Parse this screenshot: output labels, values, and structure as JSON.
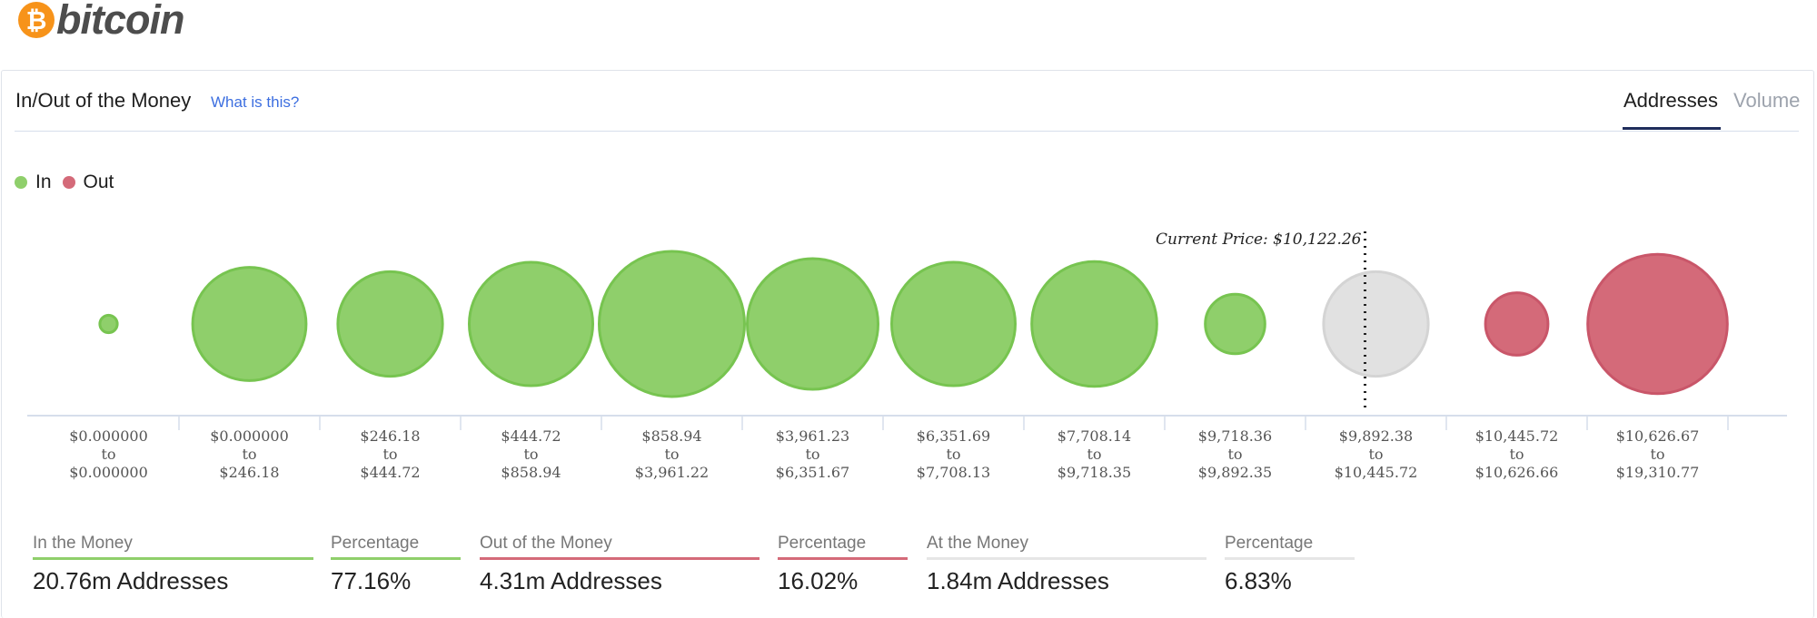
{
  "brand": {
    "symbol": "₿",
    "name": "bitcoin"
  },
  "header": {
    "title": "In/Out of the Money",
    "help_link": "What is this?",
    "tabs": [
      {
        "label": "Addresses",
        "active": true
      },
      {
        "label": "Volume",
        "active": false
      }
    ]
  },
  "colors": {
    "in": "#8fcf6b",
    "in_stroke": "#77c450",
    "out": "#d46a79",
    "out_stroke": "#c95669",
    "at": "#e1e1e1",
    "at_stroke": "#d4d4d4",
    "axis": "#d6deeb",
    "tick_text": "#555555"
  },
  "chart_data": {
    "type": "bubble",
    "legend": [
      {
        "label": "In",
        "status": "in"
      },
      {
        "label": "Out",
        "status": "out"
      }
    ],
    "current_price_label": "Current Price: $10,122.26",
    "current_price": 10122.26,
    "range_connector": "to",
    "ranges": [
      {
        "from": "$0.000000",
        "to": "$0.000000",
        "status": "in",
        "relative_size": 0.12
      },
      {
        "from": "$0.000000",
        "to": "$246.18",
        "status": "in",
        "relative_size": 0.78
      },
      {
        "from": "$246.18",
        "to": "$444.72",
        "status": "in",
        "relative_size": 0.72
      },
      {
        "from": "$444.72",
        "to": "$858.94",
        "status": "in",
        "relative_size": 0.85
      },
      {
        "from": "$858.94",
        "to": "$3,961.22",
        "status": "in",
        "relative_size": 1.0
      },
      {
        "from": "$3,961.23",
        "to": "$6,351.67",
        "status": "in",
        "relative_size": 0.9
      },
      {
        "from": "$6,351.69",
        "to": "$7,708.13",
        "status": "in",
        "relative_size": 0.85
      },
      {
        "from": "$7,708.14",
        "to": "$9,718.35",
        "status": "in",
        "relative_size": 0.86
      },
      {
        "from": "$9,718.36",
        "to": "$9,892.35",
        "status": "in",
        "relative_size": 0.41
      },
      {
        "from": "$9,892.38",
        "to": "$10,445.72",
        "status": "at",
        "relative_size": 0.72
      },
      {
        "from": "$10,445.72",
        "to": "$10,626.66",
        "status": "out",
        "relative_size": 0.43
      },
      {
        "from": "$10,626.67",
        "to": "$19,310.77",
        "status": "out",
        "relative_size": 0.96
      }
    ]
  },
  "summary": [
    {
      "label": "In the Money",
      "value": "20.76m Addresses",
      "status": "in"
    },
    {
      "label": "Percentage",
      "value": "77.16%",
      "status": "in"
    },
    {
      "label": "Out of the Money",
      "value": "4.31m Addresses",
      "status": "out"
    },
    {
      "label": "Percentage",
      "value": "16.02%",
      "status": "out"
    },
    {
      "label": "At the Money",
      "value": "1.84m Addresses",
      "status": "at"
    },
    {
      "label": "Percentage",
      "value": "6.83%",
      "status": "at"
    }
  ]
}
